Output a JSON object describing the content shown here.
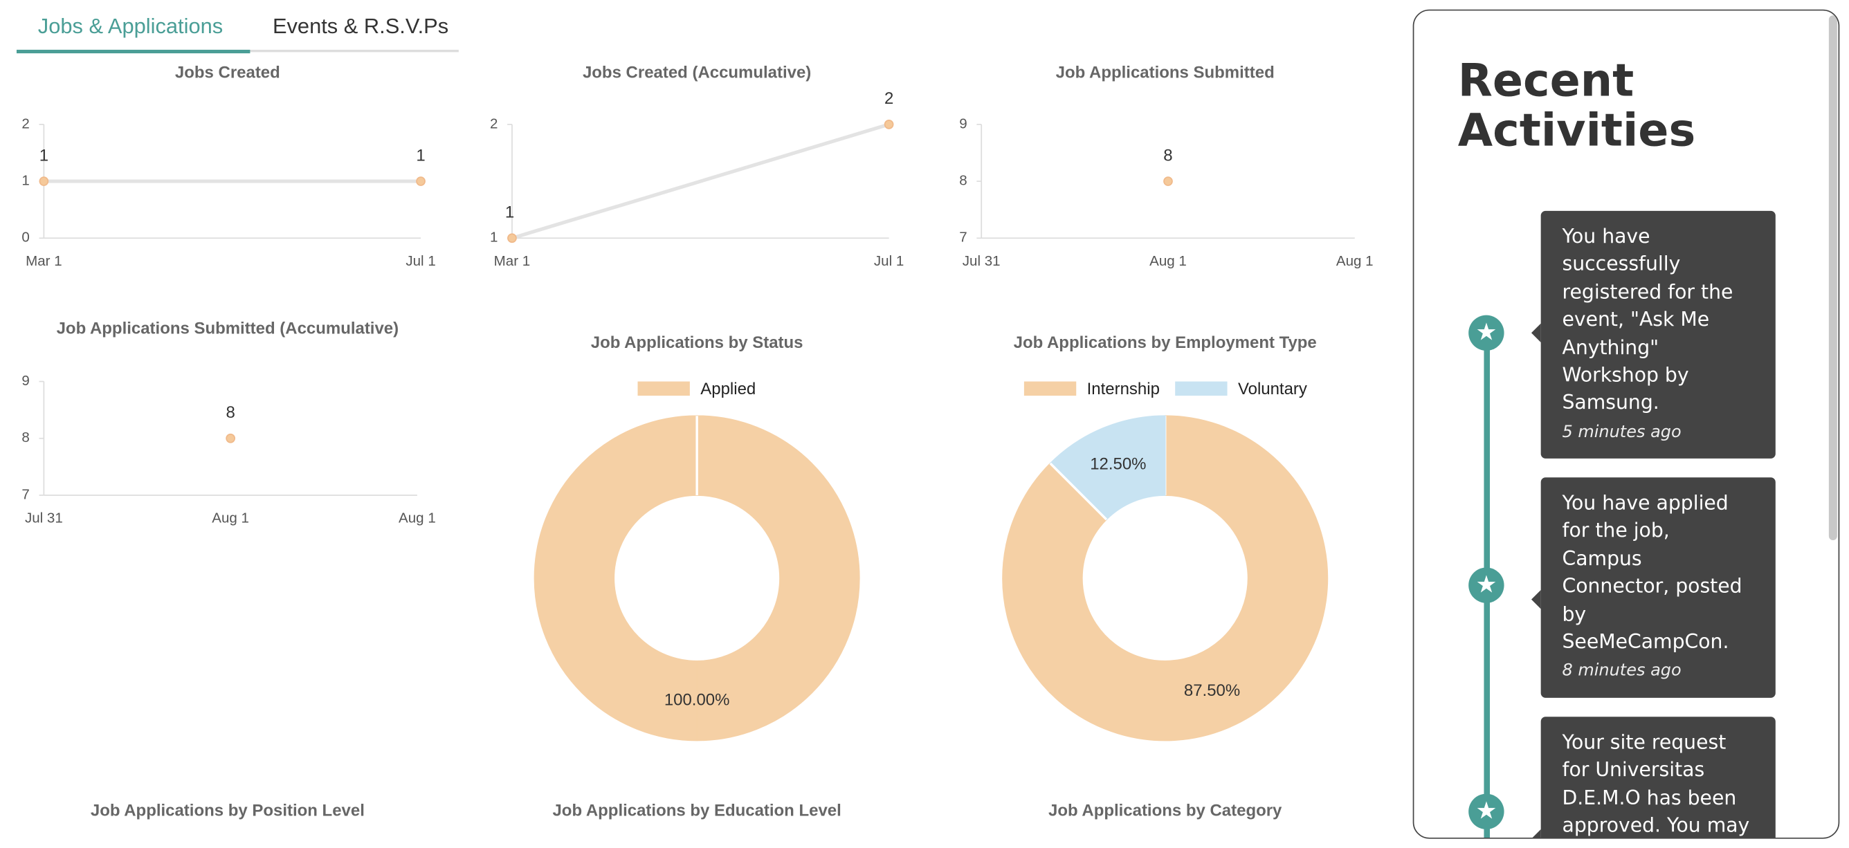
{
  "tabs": [
    "Jobs & Applications",
    "Events & R.S.V.Ps"
  ],
  "charts": [
    {
      "type": "line",
      "title": "Jobs Created",
      "categories": [
        "Mar 1",
        "Jul 1"
      ],
      "values": [
        1,
        1
      ],
      "ylim": [
        0,
        2
      ],
      "yticks": [
        0,
        1,
        2
      ],
      "color": "#f5c99a"
    },
    {
      "type": "line",
      "title": "Jobs Created (Accumulative)",
      "categories": [
        "Mar 1",
        "Jul 1"
      ],
      "values": [
        1,
        2
      ],
      "ylim": [
        1,
        2
      ],
      "yticks": [
        1,
        2
      ],
      "color": "#f5c99a"
    },
    {
      "type": "line",
      "title": "Job Applications Submitted",
      "categories": [
        "Jul 31",
        "Aug 1",
        "Aug 1"
      ],
      "values": [
        null,
        8,
        null
      ],
      "ylim": [
        7,
        9
      ],
      "yticks": [
        7,
        8,
        9
      ],
      "color": "#f5c99a"
    },
    {
      "type": "line",
      "title": "Job Applications Submitted (Accumulative)",
      "categories": [
        "Jul 31",
        "Aug 1",
        "Aug 1"
      ],
      "values": [
        null,
        8,
        null
      ],
      "ylim": [
        7,
        9
      ],
      "yticks": [
        7,
        8,
        9
      ],
      "color": "#f5c99a"
    },
    {
      "type": "donut",
      "title": "Job Applications by Status",
      "series": [
        {
          "name": "Applied",
          "color": "#f5d0a5",
          "values": [
            100
          ],
          "value_labels": [
            "100.00%"
          ]
        }
      ]
    },
    {
      "type": "donut",
      "title": "Job Applications by Employment Type",
      "series": [
        {
          "name": "Internship",
          "color": "#f5d0a5",
          "values": [
            87.5
          ],
          "value_labels": [
            "87.50%"
          ]
        },
        {
          "name": "Voluntary",
          "color": "#c8e3f2",
          "values": [
            12.5
          ],
          "value_labels": [
            "12.50%"
          ]
        }
      ]
    },
    {
      "type": "donut",
      "title": "Job Applications by Position Level"
    },
    {
      "type": "donut",
      "title": "Job Applications by Education Level"
    },
    {
      "type": "donut",
      "title": "Job Applications by Category"
    }
  ],
  "recent_activities": {
    "title": "Recent Activities",
    "items": [
      {
        "text": "You have successfully registered for the event, \"Ask Me Anything\" Workshop by Samsung.",
        "time": "5 minutes ago"
      },
      {
        "text": "You have applied for the job, Campus Connector, posted by SeeMeCampCon.",
        "time": "8 minutes ago"
      },
      {
        "text": "Your site request for Universitas D.E.M.O has been approved. You may"
      }
    ]
  }
}
